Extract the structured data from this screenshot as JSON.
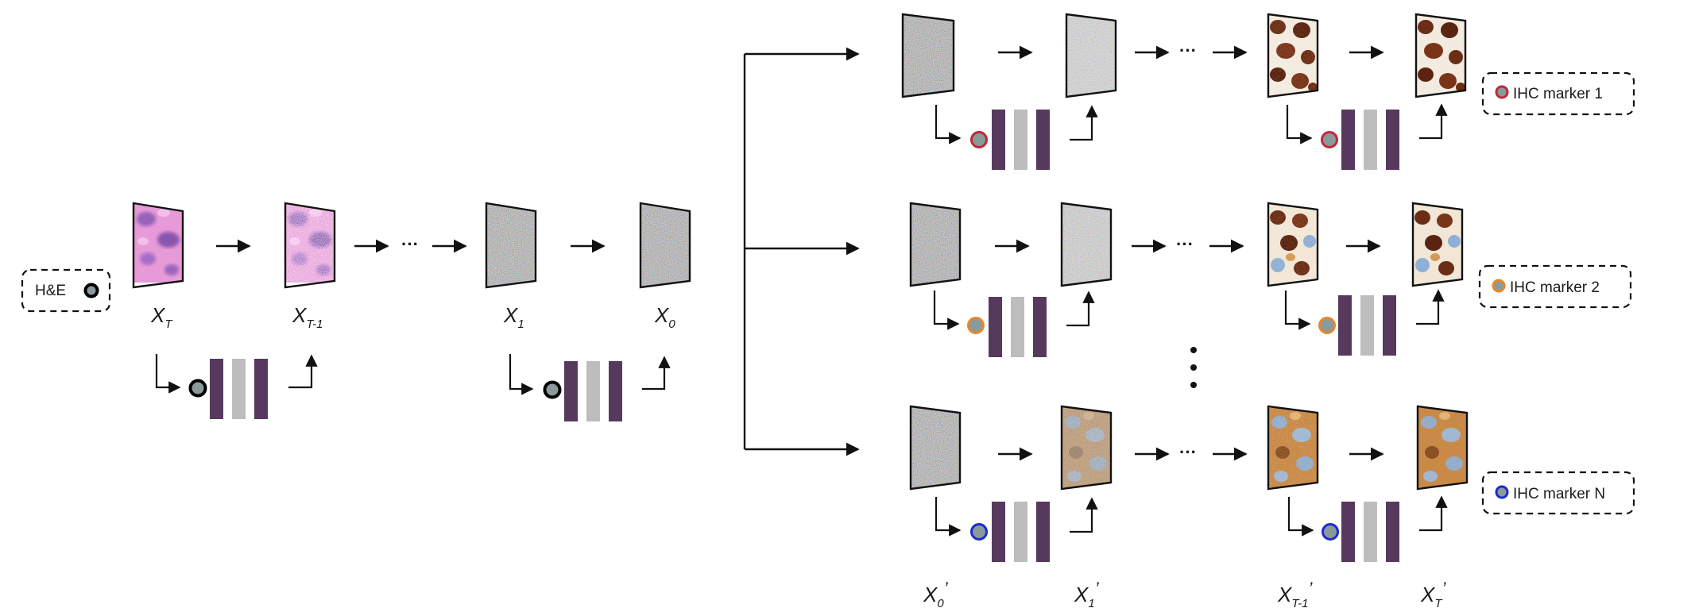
{
  "legend": {
    "he": {
      "label": "H&E",
      "dot_color": "#8a9a9a",
      "ring_color": "#000000"
    },
    "markers": [
      {
        "label": "IHC marker 1",
        "dot_color": "#8a9a9a",
        "ring_color": "#c0283a"
      },
      {
        "label": "IHC marker 2",
        "dot_color": "#8a9a9a",
        "ring_color": "#e8862a"
      },
      {
        "label": "IHC marker N",
        "dot_color": "#8a9a9a",
        "ring_color": "#1c2bd0"
      }
    ]
  },
  "left_chain": {
    "labels": [
      {
        "base": "X",
        "sub": "T"
      },
      {
        "base": "X",
        "sub": "T-1"
      },
      {
        "base": "X",
        "sub": "1"
      },
      {
        "base": "X",
        "sub": "0"
      }
    ],
    "ellipsis": "···"
  },
  "right_chain": {
    "labels": [
      {
        "base": "X",
        "sub": "0",
        "prime": "’"
      },
      {
        "base": "X",
        "sub": "1",
        "prime": "’"
      },
      {
        "base": "X",
        "sub": "T-1",
        "prime": "’"
      },
      {
        "base": "X",
        "sub": "T",
        "prime": "’"
      }
    ],
    "ellipsis": "···",
    "rows_ellipsis": "⋮"
  },
  "colors": {
    "unet_dark": "#57395e",
    "unet_light": "#bdbdbd",
    "he_pink": "#e79ad8",
    "he_purple": "#7a4fb0",
    "ihc_brown": "#6b2e14",
    "ihc_tan": "#d49a55",
    "ihc_blue": "#8fb0d6"
  }
}
